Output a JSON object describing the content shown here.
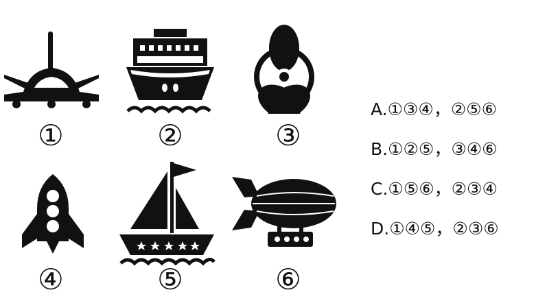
{
  "figures": [
    {
      "id": "airplane",
      "icon": "airplane-icon",
      "label": "①"
    },
    {
      "id": "ship",
      "icon": "ship-icon",
      "label": "②"
    },
    {
      "id": "propeller",
      "icon": "propeller-icon",
      "label": "③"
    },
    {
      "id": "rocket",
      "icon": "rocket-icon",
      "label": "④"
    },
    {
      "id": "sailboat",
      "icon": "sailboat-icon",
      "label": "⑤"
    },
    {
      "id": "airship",
      "icon": "airship-icon",
      "label": "⑥"
    }
  ],
  "options": [
    {
      "text": "A.①③④，②⑤⑥"
    },
    {
      "text": "B.①②⑤，③④⑥"
    },
    {
      "text": "C.①⑤⑥，②③④"
    },
    {
      "text": "D.①④⑤，②③⑥"
    }
  ],
  "colors": {
    "icon": "#111111",
    "background": "#ffffff"
  }
}
